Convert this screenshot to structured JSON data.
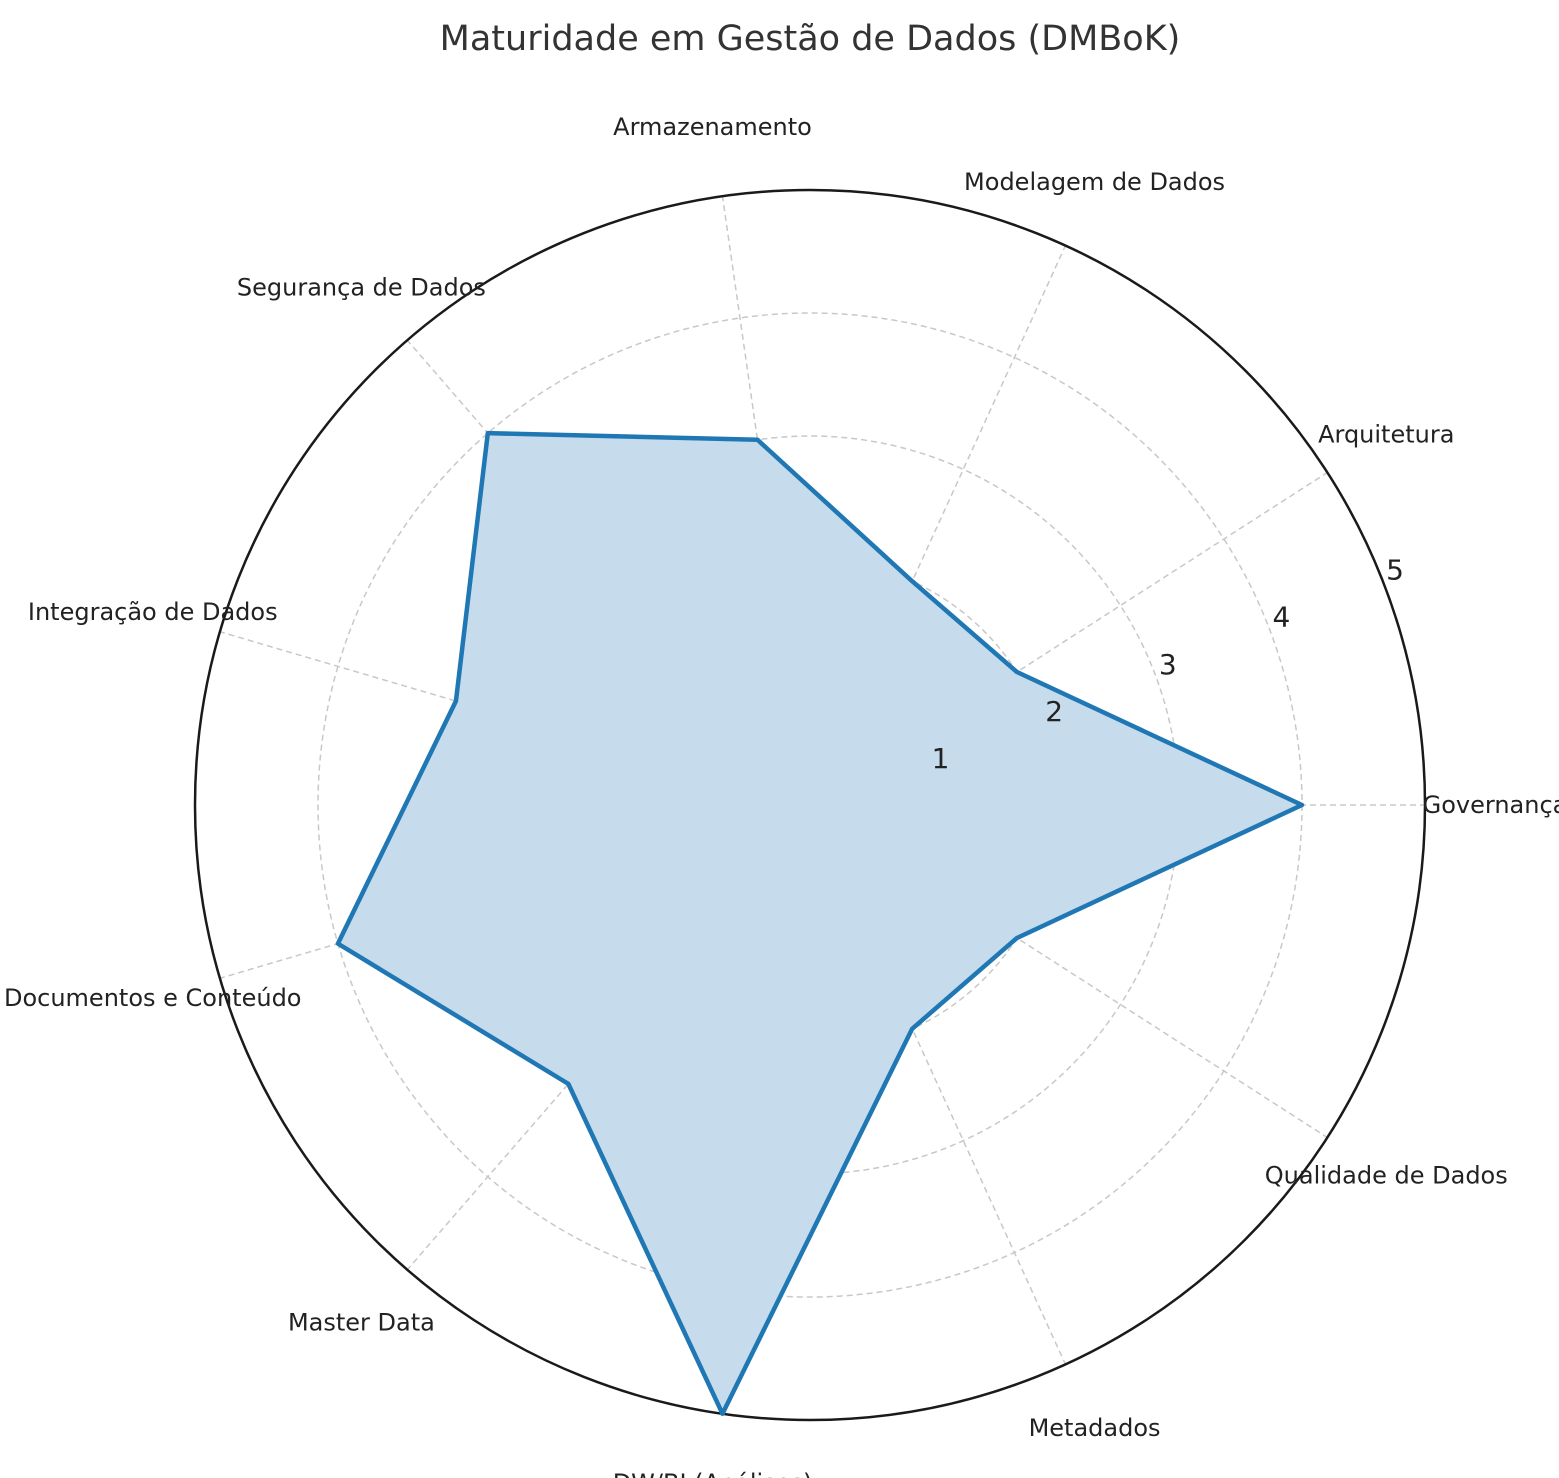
{
  "chart_data": {
    "type": "radar",
    "title": "Maturidade em Gestão de Dados (DMBoK)",
    "categories": [
      "Governança",
      "Arquitetura",
      "Modelagem de Dados",
      "Armazenamento",
      "Segurança de Dados",
      "Integração de Dados",
      "Documentos e Conteúdo",
      "Master Data",
      "DW/BI (Análises)",
      "Metadados",
      "Qualidade de Dados"
    ],
    "series": [
      {
        "values": [
          4,
          2,
          2,
          3,
          4,
          3,
          4,
          3,
          5,
          2,
          2
        ]
      }
    ],
    "rlim": [
      0,
      5
    ],
    "rticks": [
      "1",
      "2",
      "3",
      "4",
      "5"
    ],
    "grid": true,
    "colors": {
      "line": "#1f77b4",
      "fill": "#c6dbec",
      "grid": "#c8c8c8",
      "outer": "#1a1a1a"
    }
  }
}
